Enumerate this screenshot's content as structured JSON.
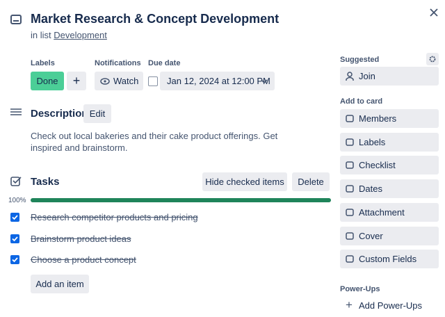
{
  "header": {
    "title": "Market Research & Concept Development",
    "list_prefix": "in list",
    "list_name": "Development"
  },
  "labels": {
    "heading": "Labels",
    "items": [
      "Done"
    ]
  },
  "notifications": {
    "heading": "Notifications",
    "button": "Watch"
  },
  "due_date": {
    "heading": "Due date",
    "value": "Jan 12, 2024 at 12:00 PM"
  },
  "description": {
    "heading": "Description",
    "edit": "Edit",
    "text": "Check out local bakeries and their cake product offerings. Get inspired and brainstorm."
  },
  "checklist": {
    "heading": "Tasks",
    "hide_button": "Hide checked items",
    "delete_button": "Delete",
    "progress": {
      "value": 100,
      "label": "100%"
    },
    "items": [
      "Research competitor products and pricing",
      "Brainstorm product ideas",
      "Choose a product concept"
    ],
    "add_item": "Add an item"
  },
  "sidebar": {
    "suggested": "Suggested",
    "join": "Join",
    "add_to_card": "Add to card",
    "actions": [
      "Members",
      "Labels",
      "Checklist",
      "Dates",
      "Attachment",
      "Cover",
      "Custom Fields"
    ],
    "power_ups": "Power-Ups",
    "add_power_ups": "Add Power-Ups"
  }
}
